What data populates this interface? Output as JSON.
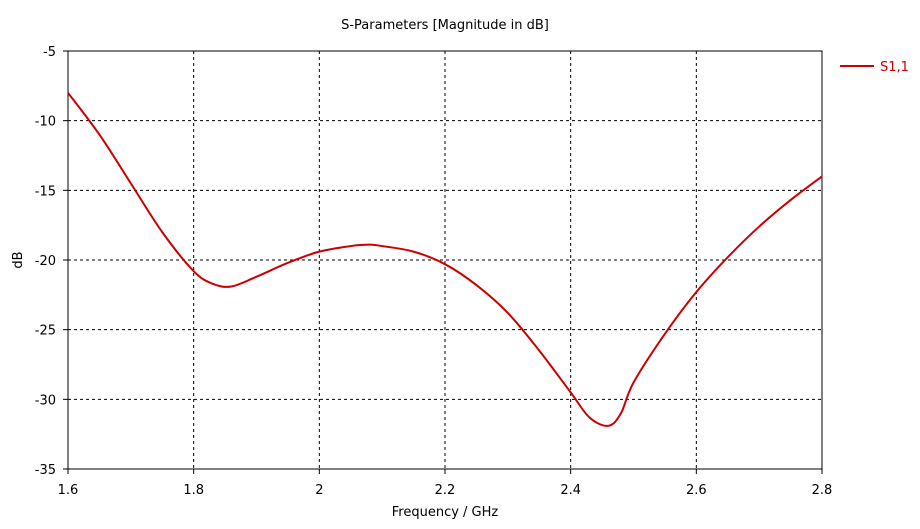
{
  "chart_data": {
    "type": "line",
    "title": "S-Parameters [Magnitude in dB]",
    "xlabel": "Frequency / GHz",
    "ylabel": "dB",
    "xlim": [
      1.6,
      2.8
    ],
    "ylim": [
      -35,
      -5
    ],
    "xticks": [
      1.6,
      1.8,
      2.0,
      2.2,
      2.4,
      2.6,
      2.8
    ],
    "xtick_labels": [
      "1.6",
      "1.8",
      "2",
      "2.2",
      "2.4",
      "2.6",
      "2.8"
    ],
    "yticks": [
      -35,
      -30,
      -25,
      -20,
      -15,
      -10,
      -5
    ],
    "ytick_labels": [
      "-35",
      "-30",
      "-25",
      "-20",
      "-15",
      "-10",
      "-5"
    ],
    "grid": true,
    "legend_position": "right",
    "series": [
      {
        "name": "S1,1",
        "color": "#cc0000",
        "x": [
          1.6,
          1.65,
          1.7,
          1.75,
          1.8,
          1.83,
          1.86,
          1.9,
          1.95,
          2.0,
          2.05,
          2.08,
          2.1,
          2.15,
          2.2,
          2.25,
          2.3,
          2.35,
          2.4,
          2.43,
          2.46,
          2.48,
          2.5,
          2.55,
          2.6,
          2.65,
          2.7,
          2.75,
          2.8
        ],
        "y": [
          -8.0,
          -11.0,
          -14.5,
          -18.0,
          -20.8,
          -21.7,
          -21.9,
          -21.2,
          -20.2,
          -19.4,
          -19.0,
          -18.9,
          -19.0,
          -19.4,
          -20.3,
          -21.8,
          -23.8,
          -26.5,
          -29.5,
          -31.3,
          -31.9,
          -31.0,
          -28.8,
          -25.3,
          -22.3,
          -19.8,
          -17.6,
          -15.7,
          -14.0
        ]
      }
    ]
  }
}
